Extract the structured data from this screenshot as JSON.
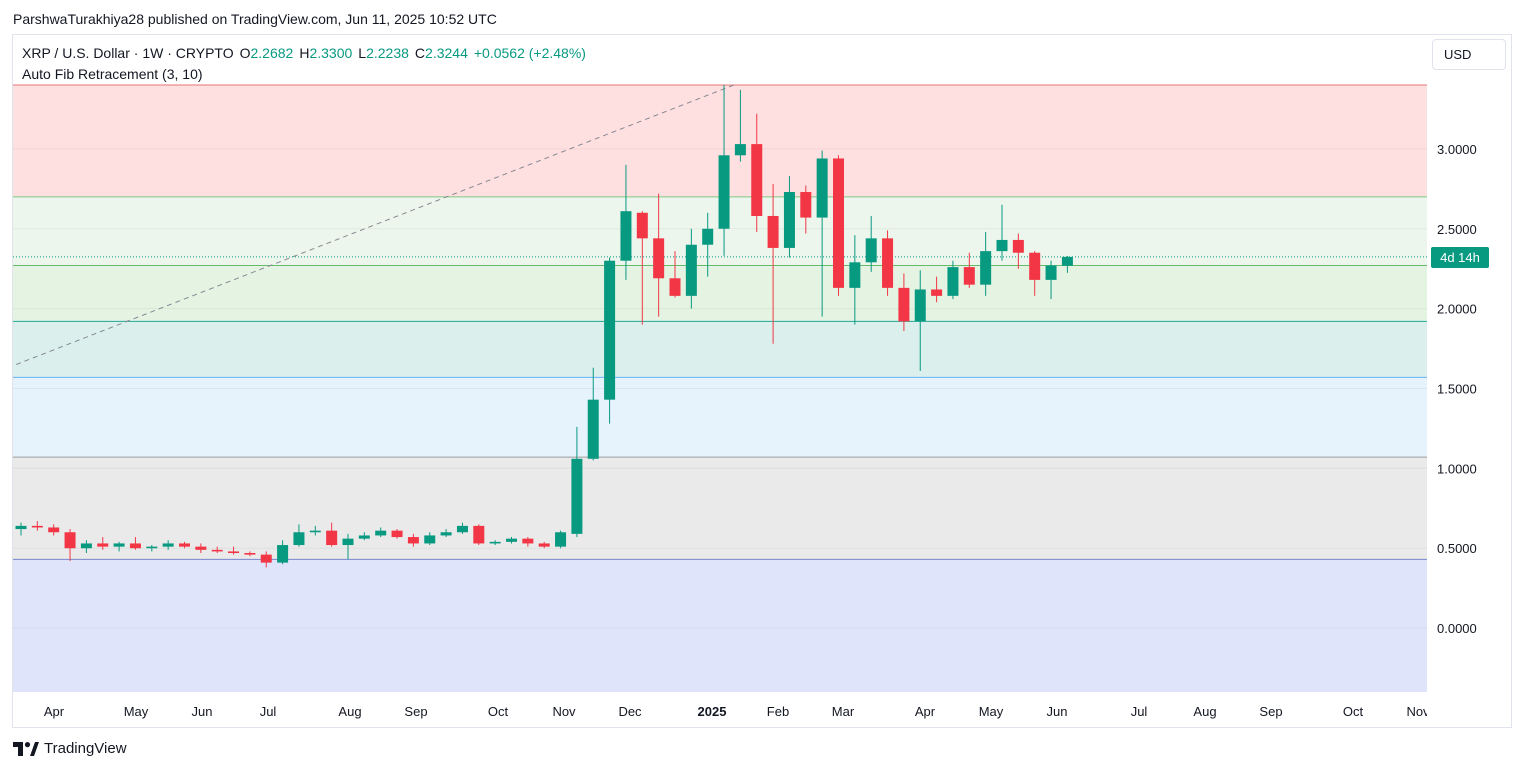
{
  "header": {
    "attribution": "ParshwaTurakhiya28 published on TradingView.com, Jun 11, 2025 10:52 UTC"
  },
  "legend": {
    "symbol": "XRP / U.S. Dollar · 1W · CRYPTO",
    "open_label": "O",
    "open": "2.2682",
    "high_label": "H",
    "high": "2.3300",
    "low_label": "L",
    "low": "2.2238",
    "close_label": "C",
    "close": "2.3244",
    "change": "+0.0562 (+2.48%)",
    "indicator": "Auto Fib Retracement (3, 10)"
  },
  "currency": "USD",
  "countdown": "4d 14h",
  "footer": {
    "brand": "TradingView"
  },
  "colors": {
    "up": "#089981",
    "down": "#f23645",
    "grid": "#f0f3fa",
    "axis_text": "#131722"
  },
  "chart_data": {
    "type": "candlestick",
    "interval": "1W",
    "ylim": [
      -0.4,
      3.4
    ],
    "y_ticks": [
      "3.0000",
      "2.5000",
      "2.0000",
      "1.5000",
      "1.0000",
      "0.5000",
      "0.0000"
    ],
    "y_tick_values": [
      3.0,
      2.5,
      2.0,
      1.5,
      1.0,
      0.5,
      0.0
    ],
    "x_ticks": [
      "Apr",
      "May",
      "Jun",
      "Jul",
      "Aug",
      "Sep",
      "Oct",
      "Nov",
      "Dec",
      "2025",
      "Feb",
      "Mar",
      "Apr",
      "May",
      "Jun",
      "Jul",
      "Aug",
      "Sep",
      "Oct",
      "Nov"
    ],
    "last_price": 2.3244,
    "fib_levels": [
      3.4,
      2.7,
      2.27,
      1.92,
      1.57,
      1.07,
      0.43
    ],
    "fib_zones": [
      {
        "from": 3.4,
        "to": 2.7,
        "fill": "#ffe0e0",
        "line": "#e57373"
      },
      {
        "from": 2.7,
        "to": 2.27,
        "fill": "#edf6ec",
        "line": "#81c784"
      },
      {
        "from": 2.27,
        "to": 1.92,
        "fill": "#e5f3e2",
        "line": "#66bb6a"
      },
      {
        "from": 1.92,
        "to": 1.57,
        "fill": "#dbefec",
        "line": "#26a69a"
      },
      {
        "from": 1.57,
        "to": 1.07,
        "fill": "#e6f3fd",
        "line": "#64b5f6"
      },
      {
        "from": 1.07,
        "to": 0.43,
        "fill": "#eaeaea",
        "line": "#9e9e9e"
      },
      {
        "from": 0.43,
        "to": -0.4,
        "fill": "#e0e4fb",
        "line": "#7986cb"
      }
    ],
    "trend_line": {
      "from_x": -0.3,
      "from_y": 1.65,
      "to_x": 43.6,
      "to_y": 3.4
    },
    "candles": [
      {
        "o": 0.62,
        "h": 0.66,
        "l": 0.58,
        "c": 0.64
      },
      {
        "o": 0.64,
        "h": 0.67,
        "l": 0.61,
        "c": 0.63
      },
      {
        "o": 0.63,
        "h": 0.65,
        "l": 0.58,
        "c": 0.6
      },
      {
        "o": 0.6,
        "h": 0.62,
        "l": 0.42,
        "c": 0.5
      },
      {
        "o": 0.5,
        "h": 0.55,
        "l": 0.47,
        "c": 0.53
      },
      {
        "o": 0.53,
        "h": 0.57,
        "l": 0.49,
        "c": 0.51
      },
      {
        "o": 0.51,
        "h": 0.54,
        "l": 0.48,
        "c": 0.53
      },
      {
        "o": 0.53,
        "h": 0.57,
        "l": 0.49,
        "c": 0.5
      },
      {
        "o": 0.5,
        "h": 0.52,
        "l": 0.48,
        "c": 0.51
      },
      {
        "o": 0.51,
        "h": 0.55,
        "l": 0.49,
        "c": 0.53
      },
      {
        "o": 0.53,
        "h": 0.54,
        "l": 0.5,
        "c": 0.51
      },
      {
        "o": 0.51,
        "h": 0.53,
        "l": 0.47,
        "c": 0.49
      },
      {
        "o": 0.49,
        "h": 0.51,
        "l": 0.47,
        "c": 0.48
      },
      {
        "o": 0.48,
        "h": 0.51,
        "l": 0.46,
        "c": 0.47
      },
      {
        "o": 0.47,
        "h": 0.48,
        "l": 0.45,
        "c": 0.46
      },
      {
        "o": 0.46,
        "h": 0.48,
        "l": 0.38,
        "c": 0.41
      },
      {
        "o": 0.41,
        "h": 0.55,
        "l": 0.4,
        "c": 0.52
      },
      {
        "o": 0.52,
        "h": 0.65,
        "l": 0.51,
        "c": 0.6
      },
      {
        "o": 0.6,
        "h": 0.64,
        "l": 0.58,
        "c": 0.61
      },
      {
        "o": 0.61,
        "h": 0.66,
        "l": 0.51,
        "c": 0.52
      },
      {
        "o": 0.52,
        "h": 0.59,
        "l": 0.43,
        "c": 0.56
      },
      {
        "o": 0.56,
        "h": 0.6,
        "l": 0.55,
        "c": 0.58
      },
      {
        "o": 0.58,
        "h": 0.63,
        "l": 0.57,
        "c": 0.61
      },
      {
        "o": 0.61,
        "h": 0.62,
        "l": 0.56,
        "c": 0.57
      },
      {
        "o": 0.57,
        "h": 0.59,
        "l": 0.51,
        "c": 0.53
      },
      {
        "o": 0.53,
        "h": 0.6,
        "l": 0.52,
        "c": 0.58
      },
      {
        "o": 0.58,
        "h": 0.62,
        "l": 0.57,
        "c": 0.6
      },
      {
        "o": 0.6,
        "h": 0.66,
        "l": 0.59,
        "c": 0.64
      },
      {
        "o": 0.64,
        "h": 0.65,
        "l": 0.52,
        "c": 0.53
      },
      {
        "o": 0.53,
        "h": 0.55,
        "l": 0.52,
        "c": 0.54
      },
      {
        "o": 0.54,
        "h": 0.57,
        "l": 0.53,
        "c": 0.56
      },
      {
        "o": 0.56,
        "h": 0.57,
        "l": 0.51,
        "c": 0.53
      },
      {
        "o": 0.53,
        "h": 0.54,
        "l": 0.5,
        "c": 0.51
      },
      {
        "o": 0.51,
        "h": 0.61,
        "l": 0.5,
        "c": 0.6
      },
      {
        "o": 0.59,
        "h": 1.26,
        "l": 0.57,
        "c": 1.06
      },
      {
        "o": 1.06,
        "h": 1.63,
        "l": 1.05,
        "c": 1.43
      },
      {
        "o": 1.43,
        "h": 2.32,
        "l": 1.28,
        "c": 2.3
      },
      {
        "o": 2.3,
        "h": 2.9,
        "l": 2.18,
        "c": 2.61
      },
      {
        "o": 2.6,
        "h": 2.61,
        "l": 1.9,
        "c": 2.44
      },
      {
        "o": 2.44,
        "h": 2.72,
        "l": 1.95,
        "c": 2.19
      },
      {
        "o": 2.19,
        "h": 2.36,
        "l": 2.07,
        "c": 2.08
      },
      {
        "o": 2.08,
        "h": 2.5,
        "l": 2.0,
        "c": 2.4
      },
      {
        "o": 2.4,
        "h": 2.6,
        "l": 2.2,
        "c": 2.5
      },
      {
        "o": 2.5,
        "h": 3.4,
        "l": 2.33,
        "c": 2.96
      },
      {
        "o": 2.96,
        "h": 3.37,
        "l": 2.92,
        "c": 3.03
      },
      {
        "o": 3.03,
        "h": 3.22,
        "l": 2.48,
        "c": 2.58
      },
      {
        "o": 2.58,
        "h": 2.78,
        "l": 1.78,
        "c": 2.38
      },
      {
        "o": 2.38,
        "h": 2.83,
        "l": 2.32,
        "c": 2.73
      },
      {
        "o": 2.73,
        "h": 2.77,
        "l": 2.47,
        "c": 2.57
      },
      {
        "o": 2.57,
        "h": 2.99,
        "l": 1.95,
        "c": 2.94
      },
      {
        "o": 2.94,
        "h": 2.96,
        "l": 2.08,
        "c": 2.13
      },
      {
        "o": 2.13,
        "h": 2.46,
        "l": 1.9,
        "c": 2.29
      },
      {
        "o": 2.29,
        "h": 2.58,
        "l": 2.23,
        "c": 2.44
      },
      {
        "o": 2.44,
        "h": 2.49,
        "l": 2.08,
        "c": 2.13
      },
      {
        "o": 2.13,
        "h": 2.22,
        "l": 1.86,
        "c": 1.92
      },
      {
        "o": 1.92,
        "h": 2.24,
        "l": 1.61,
        "c": 2.12
      },
      {
        "o": 2.12,
        "h": 2.2,
        "l": 2.04,
        "c": 2.08
      },
      {
        "o": 2.08,
        "h": 2.3,
        "l": 2.06,
        "c": 2.26
      },
      {
        "o": 2.26,
        "h": 2.35,
        "l": 2.13,
        "c": 2.15
      },
      {
        "o": 2.15,
        "h": 2.48,
        "l": 2.08,
        "c": 2.36
      },
      {
        "o": 2.36,
        "h": 2.65,
        "l": 2.3,
        "c": 2.43
      },
      {
        "o": 2.43,
        "h": 2.47,
        "l": 2.25,
        "c": 2.35
      },
      {
        "o": 2.35,
        "h": 2.36,
        "l": 2.08,
        "c": 2.18
      },
      {
        "o": 2.18,
        "h": 2.3,
        "l": 2.06,
        "c": 2.27
      },
      {
        "o": 2.268,
        "h": 2.33,
        "l": 2.224,
        "c": 2.324
      }
    ]
  }
}
